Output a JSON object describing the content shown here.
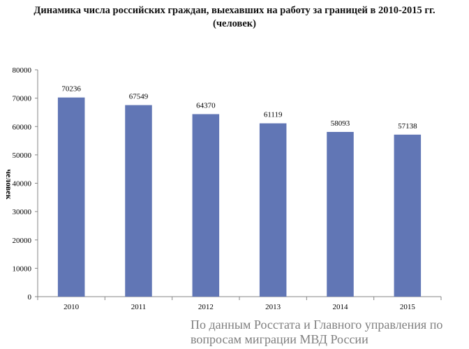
{
  "title": {
    "line1": "Динамика числа российских граждан, выехавших на работу за границей в 2010-2015 гг.",
    "line2": "(человек)"
  },
  "source": {
    "line1": "По данным Росстата и Главного управления по",
    "line2": "вопросам миграции МВД России"
  },
  "chart_data": {
    "type": "bar",
    "title": "Динамика числа российских граждан, выехавших на работу за границей в 2010-2015 гг. (человек)",
    "xlabel": "",
    "ylabel": "человек",
    "categories": [
      "2010",
      "2011",
      "2012",
      "2013",
      "2014",
      "2015"
    ],
    "values": [
      70236,
      67549,
      64370,
      61119,
      58093,
      57138
    ],
    "ylim": [
      0,
      80000
    ],
    "yticks": [
      0,
      10000,
      20000,
      30000,
      40000,
      50000,
      60000,
      70000,
      80000
    ],
    "bar_color": "#6176b5",
    "data_labels": true,
    "grid": false,
    "legend": "none"
  }
}
